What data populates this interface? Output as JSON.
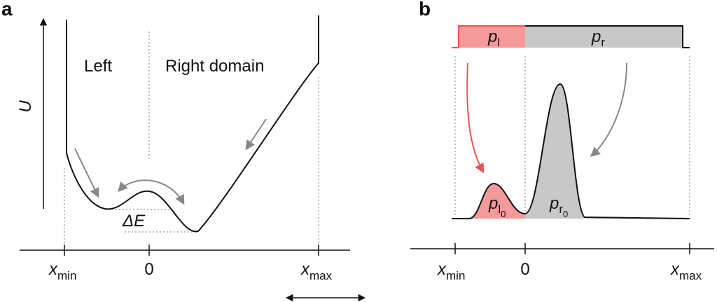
{
  "panel_a": {
    "label": "a",
    "y_axis": "U",
    "left_label": "Left",
    "right_label": "Right domain",
    "delta": "ΔE",
    "ticks": [
      {
        "base": "x",
        "sub": "min"
      },
      "0",
      {
        "base": "x",
        "sub": "max"
      }
    ]
  },
  "panel_b": {
    "label": "b",
    "bar_left": {
      "base": "p",
      "sub": "l"
    },
    "bar_right": {
      "base": "p",
      "sub": "r"
    },
    "peak_left": {
      "base": "p",
      "sub": "l",
      "subsub": "0"
    },
    "peak_right": {
      "base": "p",
      "sub": "r",
      "subsub": "0"
    },
    "ticks": [
      {
        "base": "x",
        "sub": "min"
      },
      "0",
      {
        "base": "x",
        "sub": "max"
      }
    ]
  }
}
